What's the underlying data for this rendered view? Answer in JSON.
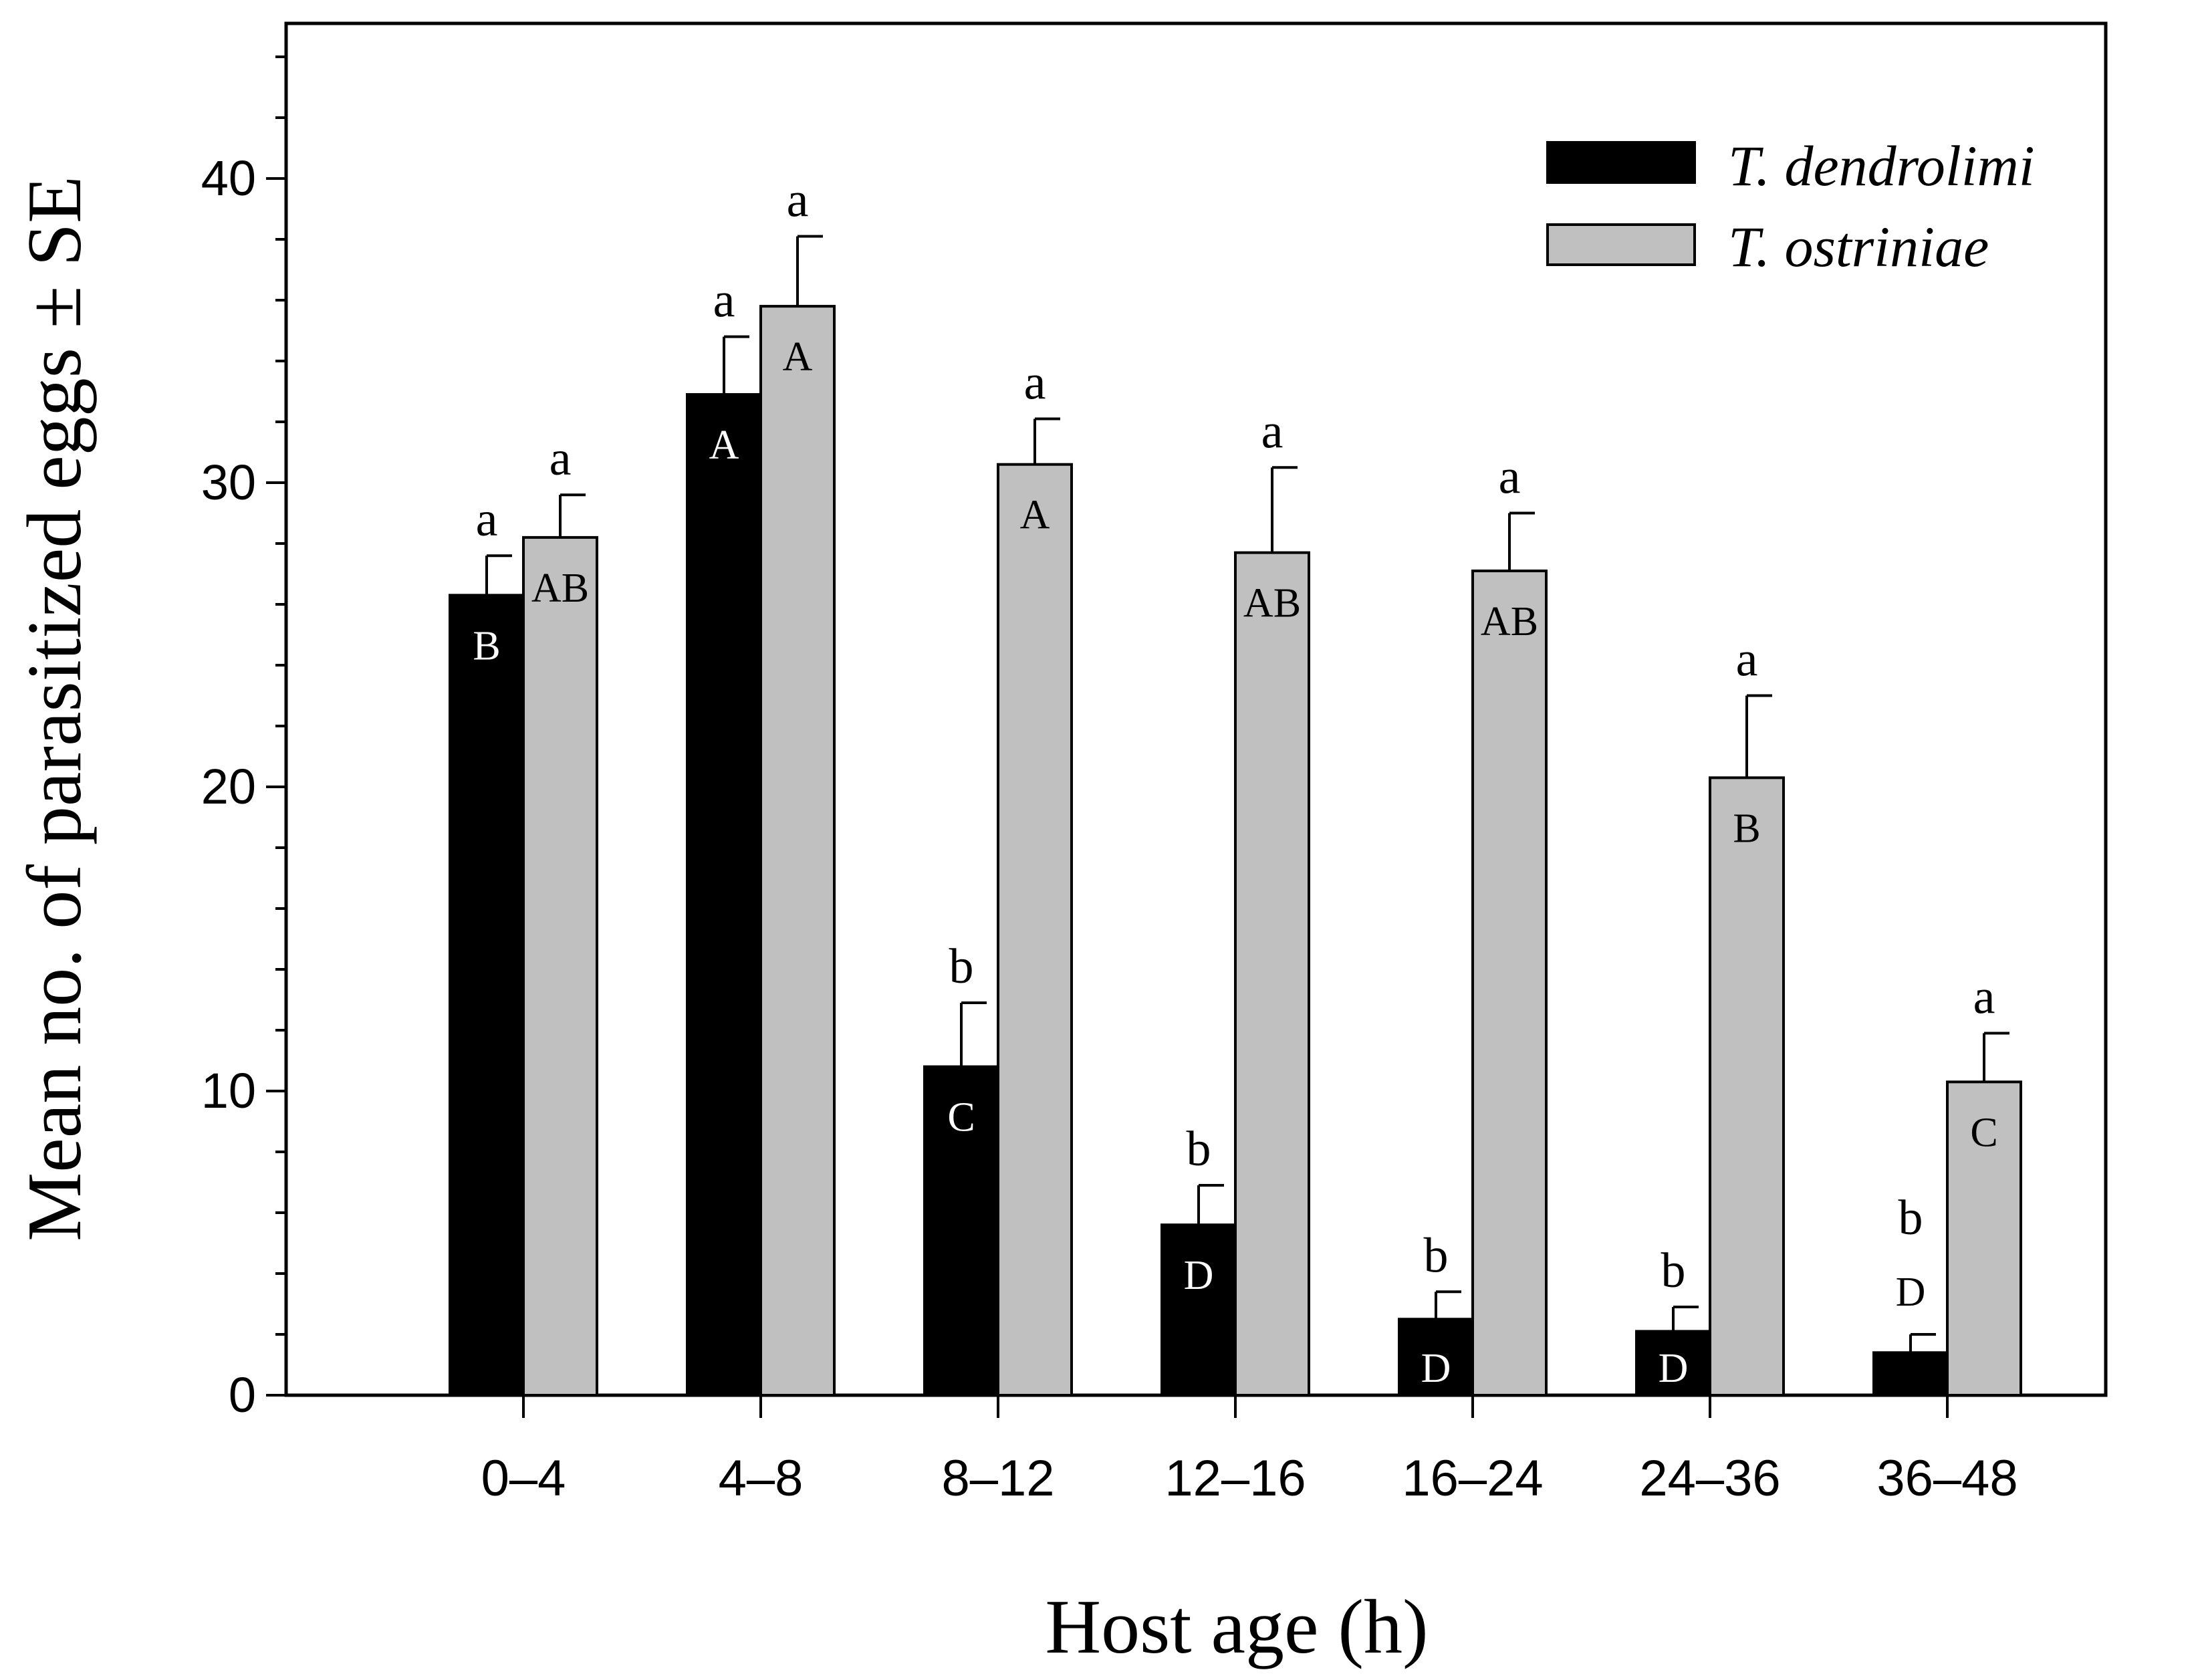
{
  "chart_data": {
    "type": "bar",
    "title": "",
    "xlabel": "Host age (h)",
    "ylabel": "Mean no. of parasitized eggs ± SE",
    "ylim": [
      0,
      45
    ],
    "y_major_ticks": [
      0,
      10,
      20,
      30,
      40
    ],
    "y_minor_step": 2,
    "categories": [
      "0–4",
      "4–8",
      "8–12",
      "12–16",
      "16–24",
      "24–36",
      "36–48"
    ],
    "legend_position": "top-right",
    "series": [
      {
        "name": "T. dendrolimi",
        "color": "#000000",
        "values": [
          26.3,
          32.9,
          10.8,
          5.6,
          2.5,
          2.1,
          1.4
        ],
        "errors": [
          1.3,
          1.9,
          2.1,
          1.3,
          0.9,
          0.8,
          0.6
        ],
        "top_letters": [
          "a",
          "a",
          "b",
          "b",
          "b",
          "b",
          "b"
        ],
        "inner_letters": [
          "B",
          "A",
          "C",
          "D",
          "D",
          "D",
          "D"
        ],
        "label_color": "#ffffff"
      },
      {
        "name": "T. ostriniae",
        "color": "#c0c0c0",
        "values": [
          28.2,
          35.8,
          30.6,
          27.7,
          27.1,
          20.3,
          10.3
        ],
        "errors": [
          1.4,
          2.3,
          1.5,
          2.8,
          1.9,
          2.7,
          1.6
        ],
        "top_letters": [
          "a",
          "a",
          "a",
          "a",
          "a",
          "a",
          "a"
        ],
        "inner_letters": [
          "AB",
          "A",
          "A",
          "AB",
          "AB",
          "B",
          "C"
        ],
        "label_color": "#000000"
      }
    ]
  }
}
